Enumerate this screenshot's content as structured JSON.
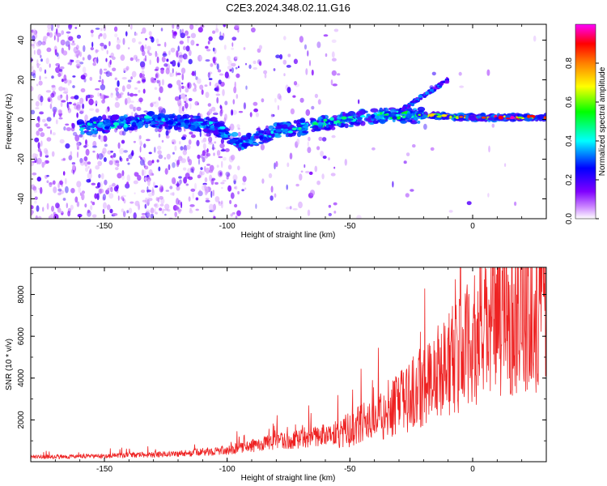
{
  "title": "C2E3.2024.348.02.11.G16",
  "chart_data": [
    {
      "type": "heatmap",
      "title": "C2E3.2024.348.02.11.G16",
      "xlabel": "Height of straight line (km)",
      "ylabel": "Frequency (Hz)",
      "xlim": [
        -180,
        30
      ],
      "ylim": [
        -50,
        48
      ],
      "x_ticks": [
        "-150",
        "-100",
        "-50",
        "0"
      ],
      "y_ticks": [
        "-40",
        "-20",
        "0",
        "20",
        "40"
      ],
      "colorbar": {
        "label": "Normalized spectral amplitude",
        "range": [
          0,
          1
        ],
        "ticks": [
          "0.0",
          "0.2",
          "0.4",
          "0.6",
          "0.8"
        ],
        "colormap": [
          "#ffffff",
          "#7f00ff",
          "#0000ff",
          "#00ffff",
          "#00ff00",
          "#ffff00",
          "#ff8000",
          "#ff0000",
          "#ff00ff"
        ]
      },
      "ridge": [
        {
          "x": -160,
          "freq": -4,
          "amp": 0.45
        },
        {
          "x": -130,
          "freq": 0,
          "amp": 0.4
        },
        {
          "x": -105,
          "freq": -3,
          "amp": 0.4
        },
        {
          "x": -95,
          "freq": -12,
          "amp": 0.35
        },
        {
          "x": -80,
          "freq": -6,
          "amp": 0.45
        },
        {
          "x": -60,
          "freq": -2,
          "amp": 0.5
        },
        {
          "x": -40,
          "freq": 2,
          "amp": 0.5
        },
        {
          "x": -25,
          "freq": 2,
          "amp": 0.55
        },
        {
          "x": -15,
          "freq": 2,
          "amp": 0.75
        },
        {
          "x": 0,
          "freq": 1,
          "amp": 0.95
        },
        {
          "x": 30,
          "freq": 1,
          "amp": 0.95
        }
      ],
      "branch": [
        {
          "x": -30,
          "freq": 4
        },
        {
          "x": -20,
          "freq": 12
        },
        {
          "x": -10,
          "freq": 20
        }
      ]
    },
    {
      "type": "line",
      "xlabel": "Height of straight line (km)",
      "ylabel": "SNR (10 * v/v)",
      "xlim": [
        -180,
        30
      ],
      "ylim": [
        0,
        9300
      ],
      "x_ticks": [
        "-150",
        "-100",
        "-50",
        "0"
      ],
      "y_ticks": [
        "2000",
        "4000",
        "6000",
        "8000"
      ],
      "series_color": "#ee2222",
      "envelope": [
        {
          "x": -180,
          "snr": 200
        },
        {
          "x": -150,
          "snr": 250
        },
        {
          "x": -120,
          "snr": 350
        },
        {
          "x": -100,
          "snr": 500
        },
        {
          "x": -85,
          "snr": 800
        },
        {
          "x": -70,
          "snr": 1000
        },
        {
          "x": -55,
          "snr": 1300
        },
        {
          "x": -45,
          "snr": 1800
        },
        {
          "x": -35,
          "snr": 2300
        },
        {
          "x": -25,
          "snr": 3200
        },
        {
          "x": -15,
          "snr": 4200
        },
        {
          "x": -5,
          "snr": 5200
        },
        {
          "x": 5,
          "snr": 6200
        },
        {
          "x": 15,
          "snr": 7000
        },
        {
          "x": 30,
          "snr": 7300
        }
      ]
    }
  ]
}
